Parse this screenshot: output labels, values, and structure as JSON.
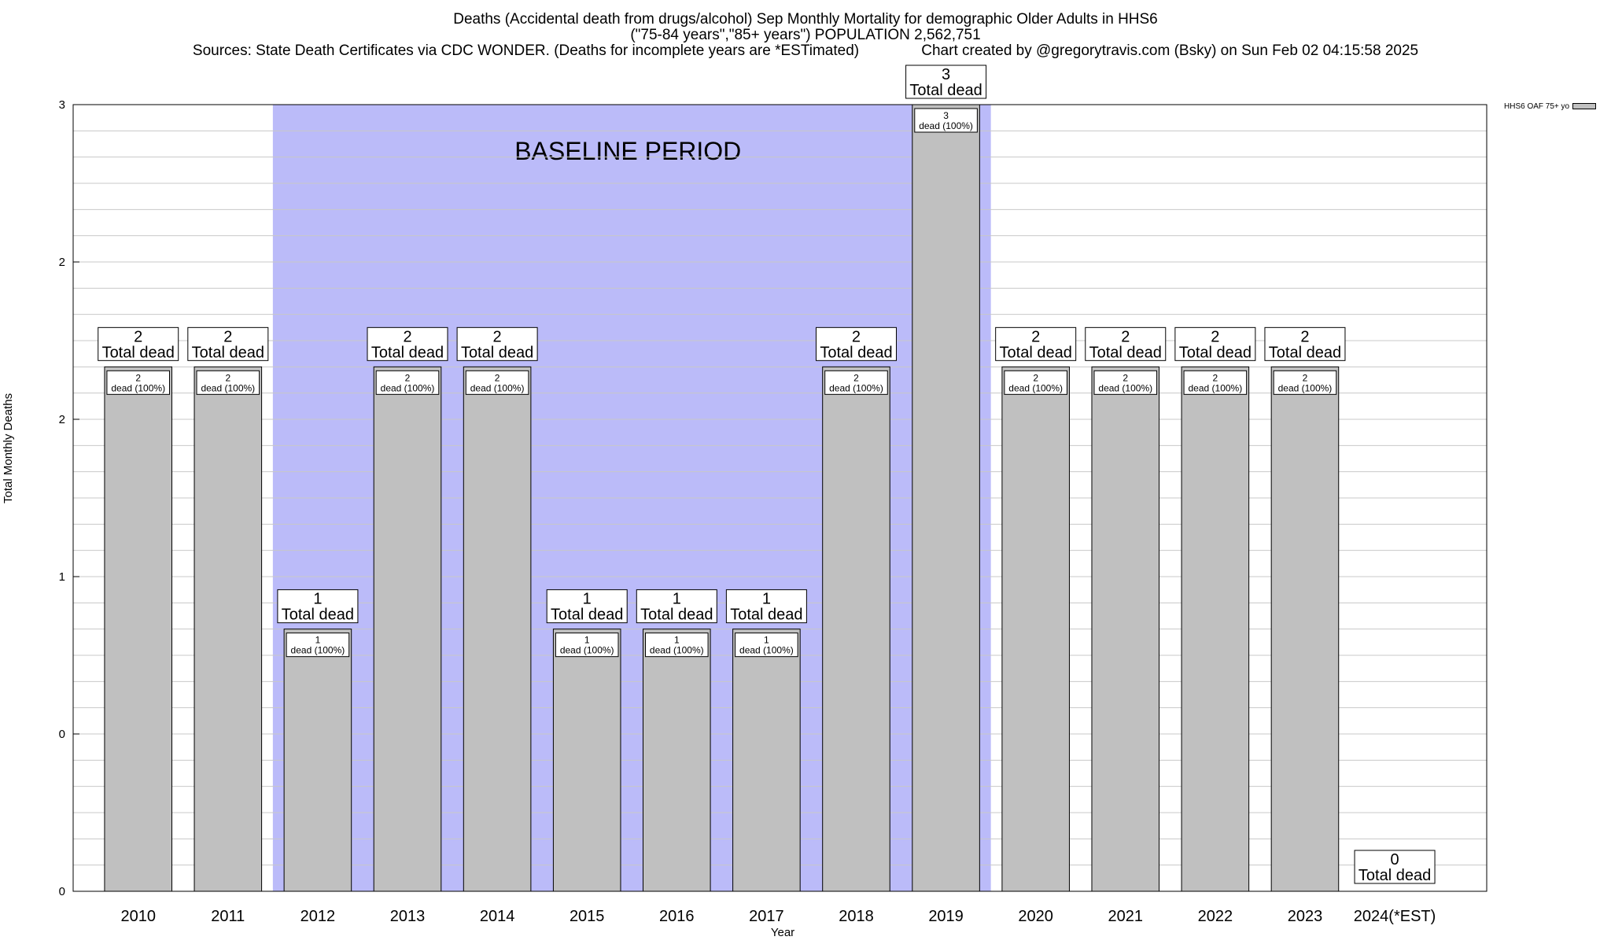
{
  "chart_data": {
    "type": "bar",
    "title_lines": [
      "Deaths (Accidental death from drugs/alcohol) Sep Monthly Mortality for demographic Older Adults in HHS6",
      "(\"75-84 years\",\"85+ years\") POPULATION 2,562,751",
      "Sources: State Death Certificates via CDC WONDER. (Deaths for incomplete years are *ESTimated)               Chart created by @gregorytravis.com (Bsky) on Sun Feb 02 04:15:58 2025"
    ],
    "xlabel": "Year",
    "ylabel": "Total Monthly Deaths",
    "categories": [
      "2010",
      "2011",
      "2012",
      "2013",
      "2014",
      "2015",
      "2016",
      "2017",
      "2018",
      "2019",
      "2020",
      "2021",
      "2022",
      "2023",
      "2024(*EST)"
    ],
    "values": [
      2,
      2,
      1,
      2,
      2,
      1,
      1,
      1,
      2,
      3,
      2,
      2,
      2,
      2,
      0
    ],
    "ylim": [
      0,
      3
    ],
    "y_tick_labels": [
      "0",
      "0",
      "1",
      "2",
      "2",
      "3"
    ],
    "total_label": "Total dead",
    "inner_label_suffix": "dead (100%)",
    "baseline_label": "BASELINE PERIOD",
    "baseline_range": [
      "2012",
      "2019"
    ],
    "legend": {
      "label": "HHS6 OAF 75+ yo",
      "placement": "top-right"
    },
    "colors": {
      "bar": "#c0c0c0",
      "baseline": "#bbbbf9",
      "grid": "#c8c8c8"
    },
    "grid": true
  }
}
